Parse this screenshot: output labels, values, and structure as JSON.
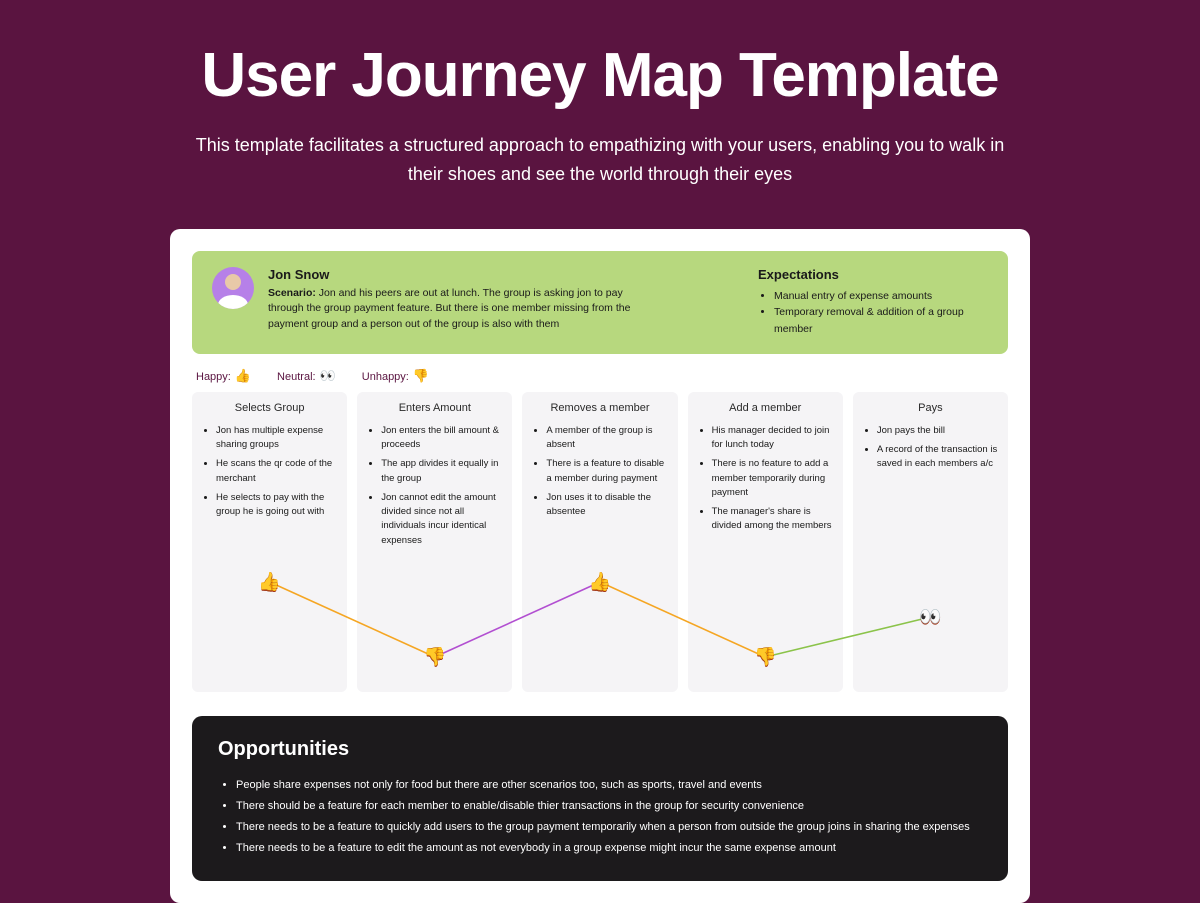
{
  "header": {
    "title": "User Journey Map Template",
    "subtitle": "This template facilitates a structured approach to empathizing with your users, enabling you to walk in their shoes and see the world through their eyes"
  },
  "colors": {
    "page_bg": "#5a1440",
    "canvas_bg": "#ffffff",
    "banner_bg": "#b7d87e",
    "column_bg": "#f5f4f6",
    "opportunities_bg": "#1c1a1c",
    "avatar_bg": "#b680e8",
    "text_dark": "#1a1a1a"
  },
  "persona": {
    "name": "Jon Snow",
    "scenario_label": "Scenario:",
    "scenario": "Jon and his peers are out at lunch. The group is asking jon to pay through the group payment feature. But there is one member missing from the payment group and a person out of the group is also with them"
  },
  "expectations": {
    "title": "Expectations",
    "items": [
      "Manual entry of expense amounts",
      "Temporary removal & addition of a group member"
    ]
  },
  "legend": {
    "happy_label": "Happy:",
    "happy_icon": "👍",
    "neutral_label": "Neutral:",
    "neutral_icon": "👀",
    "unhappy_label": "Unhappy:",
    "unhappy_icon": "👎"
  },
  "stages": [
    {
      "title": "Selects Group",
      "points": [
        "Jon has multiple expense sharing groups",
        "He scans the qr code of the merchant",
        "He selects to pay with the group he is going out with"
      ],
      "emotion": "happy"
    },
    {
      "title": "Enters Amount",
      "points": [
        "Jon enters the bill amount & proceeds",
        "The app divides it equally in the group",
        "Jon cannot edit the amount divided since not all individuals incur identical expenses"
      ],
      "emotion": "unhappy"
    },
    {
      "title": "Removes a member",
      "points": [
        "A member of the group is absent",
        "There is a feature to disable a member during payment",
        "Jon uses it to disable the absentee"
      ],
      "emotion": "happy"
    },
    {
      "title": "Add a member",
      "points": [
        "His manager decided to join for lunch today",
        "There is no feature to add a member temporarily during payment",
        "The manager's share is divided among the members"
      ],
      "emotion": "unhappy"
    },
    {
      "title": "Pays",
      "points": [
        "Jon pays the bill",
        "A record of the transaction is saved in each members a/c"
      ],
      "emotion": "neutral"
    }
  ],
  "emotion_graph": {
    "icons": {
      "happy": "👍",
      "unhappy": "👎",
      "neutral": "👀"
    },
    "y_levels": {
      "happy": 20,
      "neutral": 55,
      "unhappy": 95
    },
    "line_colors": [
      "#f5a623",
      "#b24fd1",
      "#f5a623",
      "#8bc34a"
    ],
    "line_width": 1.6
  },
  "opportunities": {
    "title": "Opportunities",
    "items": [
      "People share expenses not only for food  but there are other scenarios too, such as sports, travel and events",
      "There should be a feature for each member to enable/disable thier transactions in the group for security convenience",
      "There needs to be a feature to quickly add users to the group payment temporarily when a person from outside the group joins in sharing the expenses",
      "There needs to be a feature to edit the amount as not everybody in a group expense might incur the same expense amount"
    ]
  }
}
